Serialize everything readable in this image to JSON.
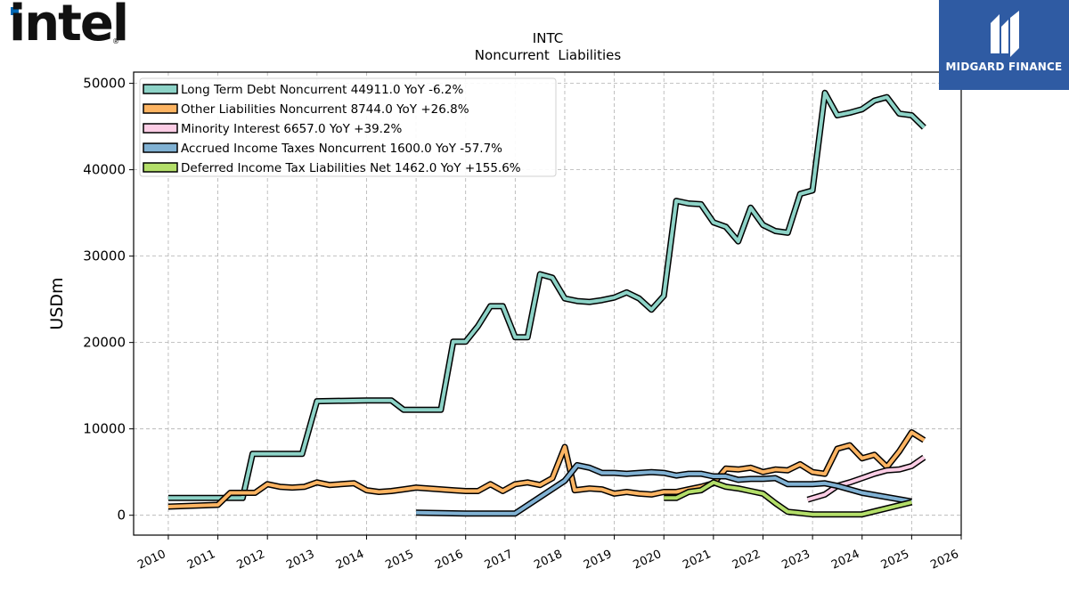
{
  "logos": {
    "company_wordmark": "intel",
    "company_reg_mark": "®",
    "brand_name": "MIDGARD FINANCE",
    "brand_color": "#2f5ba3",
    "company_color": "#0068b5"
  },
  "chart_data": {
    "type": "line",
    "title": "INTC",
    "subtitle": "Noncurrent  Liabilities",
    "xlabel": "",
    "ylabel": "USDm",
    "xlim": [
      2009.3,
      2026.0
    ],
    "ylim": [
      -2300,
      51300
    ],
    "x_ticks": [
      2010,
      2011,
      2012,
      2013,
      2014,
      2015,
      2016,
      2017,
      2018,
      2019,
      2020,
      2021,
      2022,
      2023,
      2024,
      2025,
      2026
    ],
    "y_ticks": [
      0,
      10000,
      20000,
      30000,
      40000,
      50000
    ],
    "grid": true,
    "legend_position": "upper-left",
    "series": [
      {
        "name": "Long Term Debt Noncurrent  44911.0 YoY -6.2%",
        "color": "#8dd3c7",
        "points": [
          [
            2010.0,
            2000
          ],
          [
            2011.0,
            2000
          ],
          [
            2011.5,
            2000
          ],
          [
            2011.7,
            7100
          ],
          [
            2012.0,
            7100
          ],
          [
            2012.7,
            7100
          ],
          [
            2013.0,
            13200
          ],
          [
            2014.0,
            13300
          ],
          [
            2014.5,
            13300
          ],
          [
            2014.75,
            12200
          ],
          [
            2015.0,
            12200
          ],
          [
            2015.5,
            12200
          ],
          [
            2015.75,
            20100
          ],
          [
            2016.0,
            20100
          ],
          [
            2016.25,
            21900
          ],
          [
            2016.5,
            24200
          ],
          [
            2016.75,
            24200
          ],
          [
            2017.0,
            20600
          ],
          [
            2017.25,
            20600
          ],
          [
            2017.5,
            27900
          ],
          [
            2017.75,
            27500
          ],
          [
            2018.0,
            25100
          ],
          [
            2018.25,
            24800
          ],
          [
            2018.5,
            24700
          ],
          [
            2018.75,
            24900
          ],
          [
            2019.0,
            25200
          ],
          [
            2019.25,
            25800
          ],
          [
            2019.5,
            25100
          ],
          [
            2019.75,
            23800
          ],
          [
            2020.0,
            25400
          ],
          [
            2020.25,
            36400
          ],
          [
            2020.5,
            36100
          ],
          [
            2020.75,
            36000
          ],
          [
            2021.0,
            33900
          ],
          [
            2021.25,
            33400
          ],
          [
            2021.5,
            31700
          ],
          [
            2021.75,
            35600
          ],
          [
            2022.0,
            33600
          ],
          [
            2022.25,
            32900
          ],
          [
            2022.5,
            32700
          ],
          [
            2022.75,
            37200
          ],
          [
            2023.0,
            37600
          ],
          [
            2023.25,
            48900
          ],
          [
            2023.5,
            46300
          ],
          [
            2023.75,
            46600
          ],
          [
            2024.0,
            47000
          ],
          [
            2024.25,
            48000
          ],
          [
            2024.5,
            48400
          ],
          [
            2024.75,
            46500
          ],
          [
            2025.0,
            46300
          ],
          [
            2025.25,
            44900
          ]
        ]
      },
      {
        "name": "Other Liabilities Noncurrent  8744.0 YoY +26.8%",
        "color": "#fdb462",
        "points": [
          [
            2010.0,
            1000
          ],
          [
            2011.0,
            1200
          ],
          [
            2011.25,
            2600
          ],
          [
            2011.75,
            2600
          ],
          [
            2012.0,
            3600
          ],
          [
            2012.25,
            3300
          ],
          [
            2012.5,
            3200
          ],
          [
            2012.75,
            3300
          ],
          [
            2013.0,
            3800
          ],
          [
            2013.25,
            3500
          ],
          [
            2013.75,
            3700
          ],
          [
            2014.0,
            2900
          ],
          [
            2014.25,
            2700
          ],
          [
            2014.5,
            2800
          ],
          [
            2014.75,
            3000
          ],
          [
            2015.0,
            3200
          ],
          [
            2015.5,
            3000
          ],
          [
            2015.75,
            2900
          ],
          [
            2016.0,
            2800
          ],
          [
            2016.25,
            2800
          ],
          [
            2016.5,
            3600
          ],
          [
            2016.75,
            2800
          ],
          [
            2017.0,
            3600
          ],
          [
            2017.25,
            3800
          ],
          [
            2017.5,
            3500
          ],
          [
            2017.75,
            4300
          ],
          [
            2018.0,
            7900
          ],
          [
            2018.2,
            2900
          ],
          [
            2018.5,
            3100
          ],
          [
            2018.75,
            3000
          ],
          [
            2019.0,
            2500
          ],
          [
            2019.25,
            2700
          ],
          [
            2019.5,
            2500
          ],
          [
            2019.75,
            2400
          ],
          [
            2020.0,
            2700
          ],
          [
            2020.25,
            2700
          ],
          [
            2020.5,
            3000
          ],
          [
            2020.75,
            3300
          ],
          [
            2021.0,
            3700
          ],
          [
            2021.25,
            5400
          ],
          [
            2021.5,
            5300
          ],
          [
            2021.75,
            5500
          ],
          [
            2022.0,
            5000
          ],
          [
            2022.25,
            5300
          ],
          [
            2022.5,
            5200
          ],
          [
            2022.75,
            5900
          ],
          [
            2023.0,
            5000
          ],
          [
            2023.25,
            4800
          ],
          [
            2023.5,
            7700
          ],
          [
            2023.75,
            8100
          ],
          [
            2024.0,
            6600
          ],
          [
            2024.25,
            7000
          ],
          [
            2024.5,
            5600
          ],
          [
            2024.75,
            7400
          ],
          [
            2025.0,
            9600
          ],
          [
            2025.25,
            8700
          ]
        ]
      },
      {
        "name": "Minority Interest  6657.0 YoY +39.2%",
        "color": "#fccde5",
        "points": [
          [
            2022.9,
            1800
          ],
          [
            2023.25,
            2400
          ],
          [
            2023.5,
            3400
          ],
          [
            2023.75,
            3800
          ],
          [
            2024.0,
            4300
          ],
          [
            2024.25,
            4800
          ],
          [
            2024.5,
            5200
          ],
          [
            2024.75,
            5300
          ],
          [
            2025.0,
            5700
          ],
          [
            2025.25,
            6700
          ]
        ]
      },
      {
        "name": "Accrued Income Taxes Noncurrent  1600.0 YoY -57.7%",
        "color": "#80b1d3",
        "points": [
          [
            2015.0,
            300
          ],
          [
            2016.0,
            200
          ],
          [
            2017.0,
            200
          ],
          [
            2018.0,
            4000
          ],
          [
            2018.25,
            5800
          ],
          [
            2018.5,
            5500
          ],
          [
            2018.75,
            4900
          ],
          [
            2019.0,
            4900
          ],
          [
            2019.25,
            4800
          ],
          [
            2019.5,
            4900
          ],
          [
            2019.75,
            5000
          ],
          [
            2020.0,
            4900
          ],
          [
            2020.25,
            4600
          ],
          [
            2020.5,
            4800
          ],
          [
            2020.75,
            4800
          ],
          [
            2021.0,
            4500
          ],
          [
            2021.25,
            4500
          ],
          [
            2021.5,
            4100
          ],
          [
            2021.75,
            4200
          ],
          [
            2022.0,
            4200
          ],
          [
            2022.25,
            4300
          ],
          [
            2022.5,
            3600
          ],
          [
            2022.75,
            3600
          ],
          [
            2023.0,
            3600
          ],
          [
            2023.25,
            3700
          ],
          [
            2023.5,
            3400
          ],
          [
            2024.0,
            2600
          ],
          [
            2025.0,
            1600
          ]
        ]
      },
      {
        "name": "Deferred Income Tax Liabilities Net  1462.0 YoY +155.6%",
        "color": "#b3de69",
        "points": [
          [
            2020.0,
            2000
          ],
          [
            2020.25,
            2000
          ],
          [
            2020.5,
            2700
          ],
          [
            2020.75,
            2900
          ],
          [
            2021.0,
            3800
          ],
          [
            2021.25,
            3300
          ],
          [
            2021.5,
            3100
          ],
          [
            2021.75,
            2800
          ],
          [
            2022.0,
            2500
          ],
          [
            2022.25,
            1400
          ],
          [
            2022.5,
            400
          ],
          [
            2023.0,
            100
          ],
          [
            2024.0,
            100
          ],
          [
            2025.0,
            1500
          ]
        ]
      }
    ]
  }
}
